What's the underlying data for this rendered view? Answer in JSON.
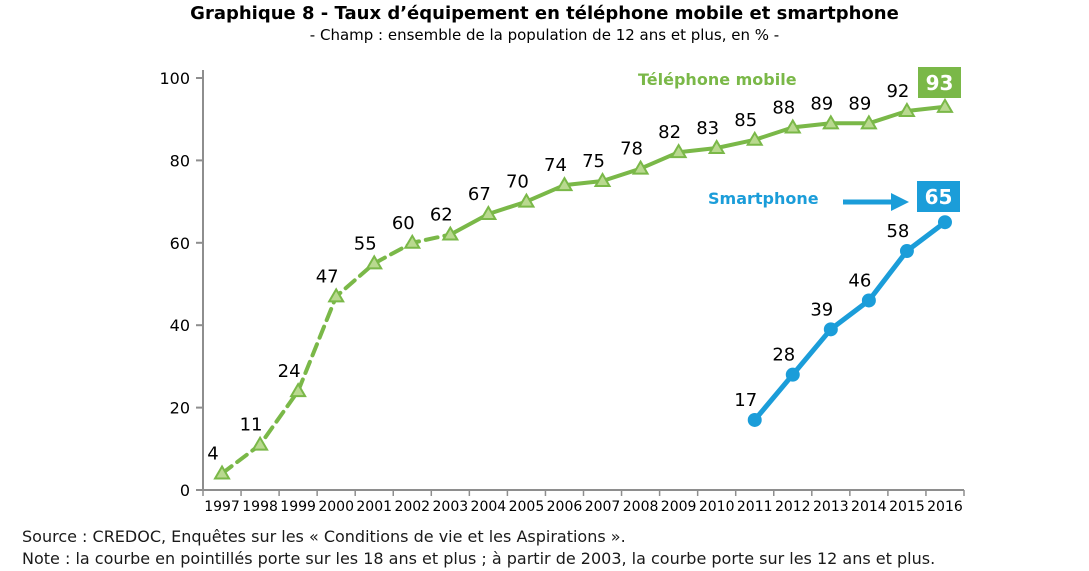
{
  "chart_data": {
    "type": "line",
    "title": "Graphique 8 - Taux d’équipement en téléphone mobile et smartphone",
    "subtitle": "- Champ : ensemble de la population de 12 ans et plus, en % -",
    "unit": "%",
    "categories": [
      1997,
      1998,
      1999,
      2000,
      2001,
      2002,
      2003,
      2004,
      2005,
      2006,
      2007,
      2008,
      2009,
      2010,
      2011,
      2012,
      2013,
      2014,
      2015,
      2016
    ],
    "yticks": [
      0,
      20,
      40,
      60,
      80,
      100
    ],
    "ylim": [
      0,
      100
    ],
    "grid": false,
    "legend_position": "inline-annotations",
    "series": [
      {
        "name": "Téléphone mobile",
        "color": "#7ab848",
        "marker": "triangle",
        "marker_fill": "#b9d98f",
        "start_year": 1997,
        "dashed_until_year": 2003,
        "values": [
          4,
          11,
          24,
          47,
          55,
          60,
          62,
          67,
          70,
          74,
          75,
          78,
          82,
          83,
          85,
          88,
          89,
          89,
          92,
          93
        ],
        "end_value_boxed": "93"
      },
      {
        "name": "Smartphone",
        "color": "#1b9dd9",
        "marker": "circle",
        "start_year": 2011,
        "values": [
          17,
          28,
          39,
          46,
          58,
          65
        ],
        "end_value_boxed": "65"
      }
    ]
  },
  "footer": {
    "source": "Source : CREDOC, Enquêtes sur les « Conditions de vie et les Aspirations ».",
    "note": "Note : la courbe en pointillés porte sur les 18 ans et plus ; à partir de 2003, la courbe porte sur les 12 ans et plus."
  },
  "colors": {
    "axis": "#8e8e8e",
    "text": "#000000",
    "background": "#ffffff"
  }
}
